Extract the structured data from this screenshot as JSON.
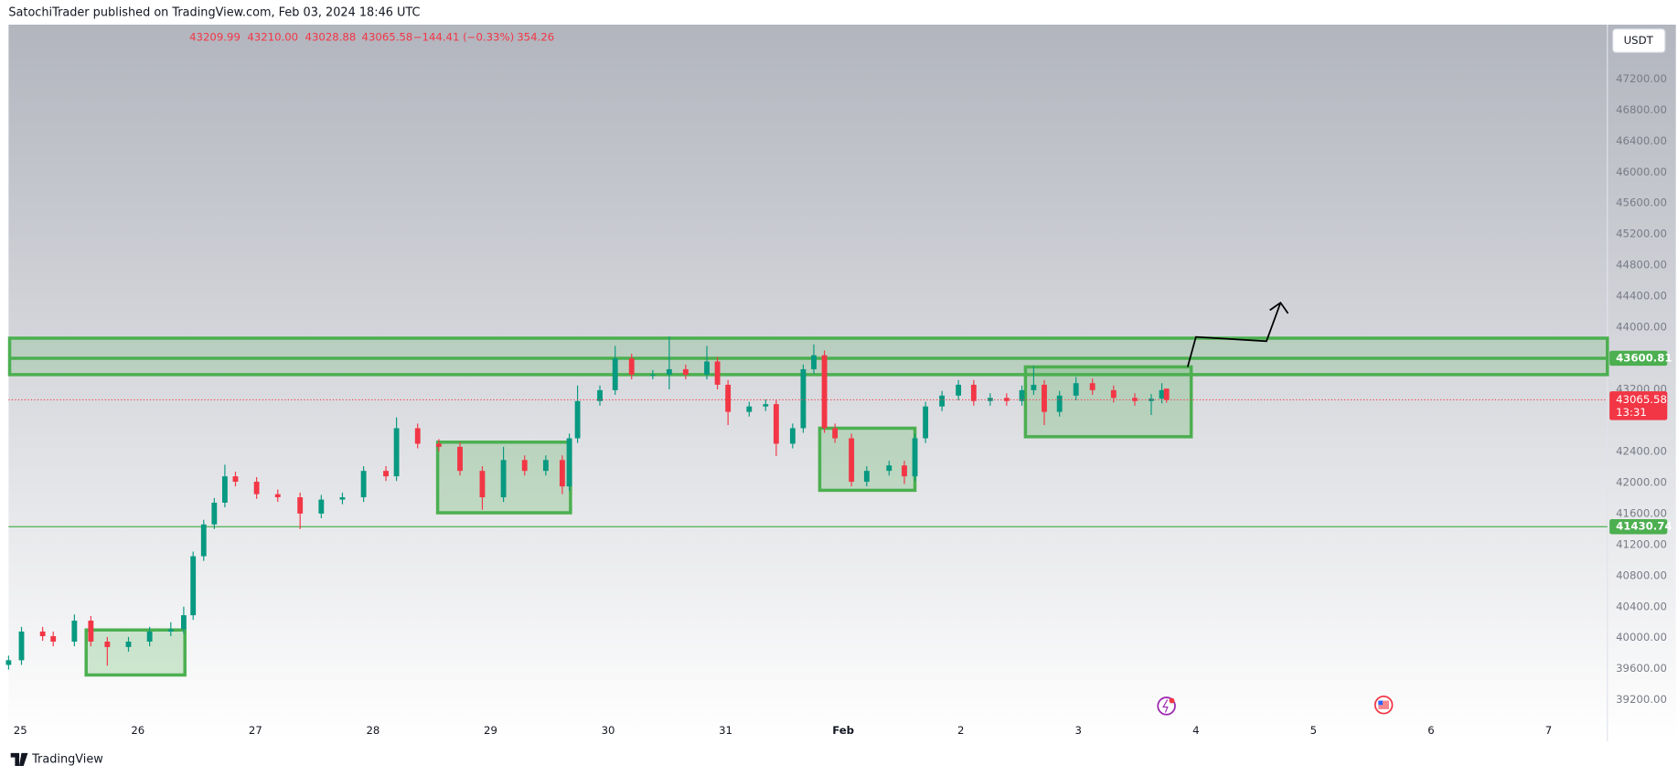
{
  "header": {
    "publisher": "SatochiTrader published on TradingView.com, Feb 03, 2024 18:46 UTC",
    "ohlc": [
      "43209.99",
      "43210.00",
      "43028.88",
      "43065.58"
    ],
    "change": "−144.41 (−0.33%)",
    "volume": "354.26",
    "currency": "USDT"
  },
  "chart_data": {
    "type": "candlestick",
    "x": [
      -0.1,
      0.01,
      0.19,
      0.28,
      0.46,
      0.6,
      0.74,
      0.92,
      1.1,
      1.28,
      1.39,
      1.47,
      1.56,
      1.65,
      1.74,
      1.83,
      2.01,
      2.19,
      2.38,
      2.56,
      2.74,
      2.92,
      3.11,
      3.2,
      3.38,
      3.56,
      3.74,
      3.93,
      4.11,
      4.29,
      4.47,
      4.61,
      4.67,
      4.74,
      4.93,
      5.06,
      5.2,
      5.38,
      5.52,
      5.66,
      5.84,
      5.93,
      6.02,
      6.2,
      6.34,
      6.43,
      6.57,
      6.66,
      6.75,
      6.84,
      6.93,
      7.07,
      7.2,
      7.39,
      7.52,
      7.61,
      7.7,
      7.84,
      7.98,
      8.11,
      8.25,
      8.39,
      8.52,
      8.62,
      8.71,
      8.84,
      8.98,
      9.12,
      9.3,
      9.48,
      9.62,
      9.71,
      9.75
    ],
    "open": [
      39650,
      39710,
      40080,
      40020,
      39950,
      40220,
      39950,
      39880,
      39950,
      40080,
      40110,
      40290,
      41050,
      41460,
      41740,
      42080,
      42010,
      41850,
      41810,
      41600,
      41780,
      41810,
      42150,
      42080,
      42700,
      42500,
      42460,
      42150,
      41810,
      42290,
      42150,
      42290,
      41950,
      42570,
      43050,
      43190,
      43600,
      43390,
      43390,
      43460,
      43390,
      43560,
      43260,
      42910,
      42980,
      43010,
      42500,
      42700,
      43460,
      43640,
      42700,
      42570,
      42010,
      42150,
      42220,
      42080,
      42570,
      42980,
      43120,
      43260,
      43050,
      43090,
      43050,
      43190,
      43260,
      42910,
      43120,
      43280,
      43190,
      43090,
      43050,
      43080,
      43209.99
    ],
    "high": [
      39770,
      40140,
      40140,
      40080,
      40300,
      40280,
      40010,
      40010,
      40140,
      40200,
      40400,
      41110,
      41520,
      41800,
      42230,
      42140,
      42070,
      41910,
      41870,
      41840,
      41870,
      42210,
      42210,
      42840,
      42760,
      42560,
      42520,
      42210,
      42460,
      42350,
      42350,
      42350,
      42630,
      43250,
      43250,
      43760,
      43660,
      43450,
      43880,
      43520,
      43760,
      43620,
      43320,
      43040,
      43070,
      43070,
      42760,
      43520,
      43780,
      43700,
      42760,
      42630,
      42210,
      42280,
      42280,
      42630,
      43040,
      43180,
      43320,
      43320,
      43150,
      43150,
      43250,
      43500,
      43320,
      43180,
      43360,
      43340,
      43250,
      43150,
      43140,
      43280,
      43210.0
    ],
    "low": [
      39590,
      39650,
      39960,
      39890,
      39890,
      39890,
      39640,
      39820,
      39890,
      40020,
      40050,
      40230,
      40990,
      41400,
      41680,
      41950,
      41790,
      41750,
      41400,
      41540,
      41720,
      41750,
      42020,
      42020,
      42440,
      42400,
      42090,
      41650,
      41750,
      42090,
      42090,
      41850,
      41890,
      42510,
      42990,
      43130,
      43330,
      43330,
      43200,
      43330,
      43330,
      43200,
      42740,
      42850,
      42920,
      42340,
      42440,
      42640,
      43400,
      42640,
      42510,
      41950,
      41950,
      42090,
      41980,
      42020,
      42510,
      42920,
      43060,
      42990,
      42990,
      42990,
      42990,
      43130,
      42740,
      42850,
      43060,
      43130,
      43030,
      42990,
      42870,
      43020,
      43028.88
    ],
    "close": [
      39710,
      40080,
      40020,
      39950,
      40220,
      39950,
      39880,
      39950,
      40080,
      40110,
      40290,
      41050,
      41460,
      41740,
      42080,
      42010,
      41850,
      41810,
      41600,
      41780,
      41810,
      42150,
      42080,
      42700,
      42500,
      42460,
      42150,
      41810,
      42290,
      42150,
      42290,
      41950,
      42570,
      43050,
      43190,
      43600,
      43390,
      43390,
      43460,
      43390,
      43560,
      43260,
      42910,
      42980,
      43010,
      42500,
      42700,
      43460,
      43640,
      42700,
      42570,
      42010,
      42150,
      42220,
      42080,
      42570,
      42980,
      43120,
      43260,
      43050,
      43090,
      43050,
      43190,
      43260,
      42910,
      43120,
      43280,
      43190,
      43090,
      43050,
      43080,
      43190,
      43065.58
    ],
    "up_color": "#089981",
    "down_color": "#f23645",
    "xlim": [
      -0.1,
      13.5
    ],
    "xticks": [
      {
        "value": 0,
        "label": "25"
      },
      {
        "value": 1,
        "label": "26"
      },
      {
        "value": 2,
        "label": "27"
      },
      {
        "value": 3,
        "label": "28"
      },
      {
        "value": 4,
        "label": "29"
      },
      {
        "value": 5,
        "label": "30"
      },
      {
        "value": 6,
        "label": "31"
      },
      {
        "value": 7,
        "label": "Feb"
      },
      {
        "value": 8,
        "label": "2"
      },
      {
        "value": 9,
        "label": "3"
      },
      {
        "value": 10,
        "label": "4"
      },
      {
        "value": 11,
        "label": "5"
      },
      {
        "value": 12,
        "label": "6"
      },
      {
        "value": 13,
        "label": "7"
      }
    ],
    "ylim": [
      39010,
      47900
    ],
    "yticks": [
      {
        "value": 39200,
        "label": "39200.00"
      },
      {
        "value": 39600,
        "label": "39600.00"
      },
      {
        "value": 40000,
        "label": "40000.00"
      },
      {
        "value": 40400,
        "label": "40400.00"
      },
      {
        "value": 40800,
        "label": "40800.00"
      },
      {
        "value": 41200,
        "label": "41200.00"
      },
      {
        "value": 41600,
        "label": "41600.00"
      },
      {
        "value": 42000,
        "label": "42000.00"
      },
      {
        "value": 42400,
        "label": "42400.00"
      },
      {
        "value": 43200,
        "label": "43200.00"
      },
      {
        "value": 44000,
        "label": "44000.00"
      },
      {
        "value": 44400,
        "label": "44400.00"
      },
      {
        "value": 44800,
        "label": "44800.00"
      },
      {
        "value": 45200,
        "label": "45200.00"
      },
      {
        "value": 45600,
        "label": "45600.00"
      },
      {
        "value": 46000,
        "label": "46000.00"
      },
      {
        "value": 46400,
        "label": "46400.00"
      },
      {
        "value": 46800,
        "label": "46800.00"
      },
      {
        "value": 47200,
        "label": "47200.00"
      }
    ],
    "levels": [
      43600.81,
      41430.74
    ],
    "level_color": "#4caf50",
    "last_price_countdown": "13:31",
    "band": [
      43390,
      43860
    ],
    "zones": [
      {
        "x": [
          0.56,
          1.4
        ],
        "y": [
          39520,
          40100
        ]
      },
      {
        "x": [
          3.55,
          4.68
        ],
        "y": [
          41610,
          42520
        ]
      },
      {
        "x": [
          6.8,
          7.61
        ],
        "y": [
          41900,
          42700
        ]
      },
      {
        "x": [
          8.55,
          9.96
        ],
        "y": [
          42590,
          43490
        ]
      }
    ],
    "arrow": {
      "x": [
        9.93,
        10.0,
        10.6,
        10.72
      ],
      "y": [
        43490,
        43876,
        43821,
        44317
      ]
    }
  },
  "footer": {
    "brand": "TradingView"
  }
}
